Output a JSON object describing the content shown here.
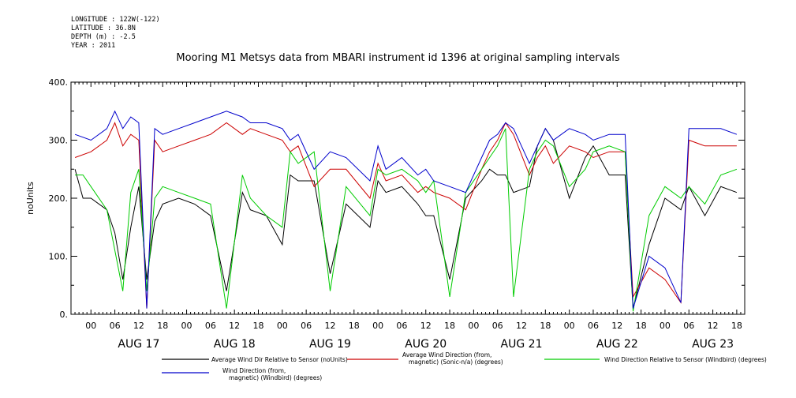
{
  "header": {
    "meta_lines": [
      "LONGITUDE : 122W(-122)",
      "LATITUDE : 36.8N",
      "DEPTH (m) : -2.5",
      "YEAR : 2011"
    ]
  },
  "chart_data": {
    "type": "line",
    "title": "Mooring M1 Metsys data from MBARI instrument id 1396 at original sampling intervals",
    "ylabel": "noUnits",
    "xlabel": "",
    "ylim": [
      0,
      400
    ],
    "xlim_hours": [
      -5,
      164
    ],
    "y_ticks": [
      "0.",
      "100.",
      "200.",
      "300.",
      "400."
    ],
    "y_tick_values": [
      0,
      100,
      200,
      300,
      400
    ],
    "hour_ticks": [
      "00",
      "06",
      "12",
      "18",
      "00",
      "06",
      "12",
      "18",
      "00",
      "06",
      "12",
      "18",
      "00",
      "06",
      "12",
      "18",
      "00",
      "06",
      "12",
      "18",
      "00",
      "06",
      "12",
      "18",
      "00",
      "06",
      "12",
      "18"
    ],
    "day_labels": [
      "AUG 17",
      "AUG 18",
      "AUG 19",
      "AUG 20",
      "AUG 21",
      "AUG 22",
      "AUG 23"
    ],
    "grid": false,
    "legend_placement": "bottom",
    "series": [
      {
        "name": "Average Wind Dir Relative to Sensor (noUnits)",
        "color": "#000000",
        "x_hours": [
          -4,
          -2,
          0,
          4,
          6,
          8,
          10,
          12,
          14,
          16,
          18,
          22,
          26,
          30,
          34,
          38,
          40,
          44,
          48,
          50,
          52,
          56,
          60,
          64,
          70,
          72,
          74,
          78,
          82,
          84,
          86,
          90,
          94,
          98,
          100,
          102,
          104,
          106,
          110,
          112,
          114,
          116,
          120,
          124,
          126,
          130,
          134,
          136,
          140,
          144,
          148,
          150,
          154,
          158,
          162
        ],
        "values": [
          250,
          200,
          200,
          180,
          140,
          60,
          150,
          220,
          60,
          160,
          190,
          200,
          190,
          170,
          40,
          210,
          180,
          170,
          120,
          240,
          230,
          230,
          70,
          190,
          150,
          230,
          210,
          220,
          190,
          170,
          170,
          60,
          200,
          230,
          250,
          240,
          240,
          210,
          220,
          290,
          320,
          300,
          200,
          270,
          290,
          240,
          240,
          10,
          120,
          200,
          180,
          220,
          170,
          220,
          210
        ]
      },
      {
        "name": "Average Wind Direction (from, magnetic) (Sonic-n/a) (degrees)",
        "color": "#cc0000",
        "x_hours": [
          -4,
          0,
          4,
          6,
          8,
          10,
          12,
          14,
          16,
          18,
          22,
          26,
          30,
          34,
          38,
          40,
          44,
          48,
          50,
          52,
          56,
          60,
          64,
          70,
          72,
          74,
          78,
          82,
          84,
          86,
          90,
          94,
          98,
          100,
          102,
          104,
          106,
          110,
          112,
          114,
          116,
          120,
          124,
          126,
          130,
          134,
          136,
          140,
          144,
          148,
          150,
          154,
          158,
          162
        ],
        "values": [
          270,
          280,
          300,
          330,
          290,
          310,
          300,
          10,
          300,
          280,
          290,
          300,
          310,
          330,
          310,
          320,
          310,
          300,
          280,
          290,
          220,
          250,
          250,
          200,
          260,
          230,
          240,
          210,
          220,
          210,
          200,
          180,
          250,
          280,
          300,
          330,
          310,
          240,
          270,
          290,
          260,
          290,
          280,
          270,
          280,
          280,
          30,
          80,
          60,
          20,
          300,
          290,
          290,
          290
        ]
      },
      {
        "name": "Wind Direction Relative to Sensor (Windbird) (degrees)",
        "color": "#00cc00",
        "x_hours": [
          -4,
          -2,
          0,
          4,
          6,
          8,
          10,
          12,
          14,
          16,
          18,
          22,
          26,
          30,
          34,
          38,
          40,
          44,
          48,
          50,
          52,
          56,
          60,
          64,
          70,
          72,
          74,
          78,
          82,
          84,
          86,
          90,
          94,
          98,
          100,
          102,
          104,
          106,
          110,
          112,
          114,
          116,
          120,
          124,
          126,
          130,
          134,
          136,
          140,
          144,
          148,
          150,
          154,
          158,
          162
        ],
        "values": [
          240,
          240,
          220,
          180,
          110,
          40,
          210,
          250,
          40,
          200,
          220,
          210,
          200,
          190,
          10,
          240,
          200,
          170,
          150,
          280,
          260,
          280,
          40,
          220,
          170,
          250,
          240,
          250,
          230,
          210,
          230,
          30,
          210,
          250,
          270,
          290,
          320,
          30,
          250,
          280,
          300,
          290,
          220,
          250,
          280,
          290,
          280,
          5,
          170,
          220,
          200,
          220,
          190,
          240,
          250
        ]
      },
      {
        "name": "Wind Direction (from, magnetic) (Windbird) (degrees)",
        "color": "#0000cc",
        "x_hours": [
          -4,
          0,
          4,
          6,
          8,
          10,
          12,
          14,
          16,
          18,
          22,
          26,
          30,
          34,
          38,
          40,
          44,
          48,
          50,
          52,
          56,
          60,
          64,
          70,
          72,
          74,
          78,
          82,
          84,
          86,
          90,
          94,
          98,
          100,
          102,
          104,
          106,
          110,
          112,
          114,
          116,
          120,
          124,
          126,
          130,
          134,
          136,
          140,
          144,
          148,
          150,
          154,
          158,
          162
        ],
        "values": [
          310,
          300,
          320,
          350,
          320,
          340,
          330,
          10,
          320,
          310,
          320,
          330,
          340,
          350,
          340,
          330,
          330,
          320,
          300,
          310,
          250,
          280,
          270,
          230,
          290,
          250,
          270,
          240,
          250,
          230,
          220,
          210,
          270,
          300,
          310,
          330,
          320,
          260,
          290,
          320,
          300,
          320,
          310,
          300,
          310,
          310,
          10,
          100,
          80,
          20,
          320,
          320,
          320,
          310
        ]
      }
    ]
  }
}
